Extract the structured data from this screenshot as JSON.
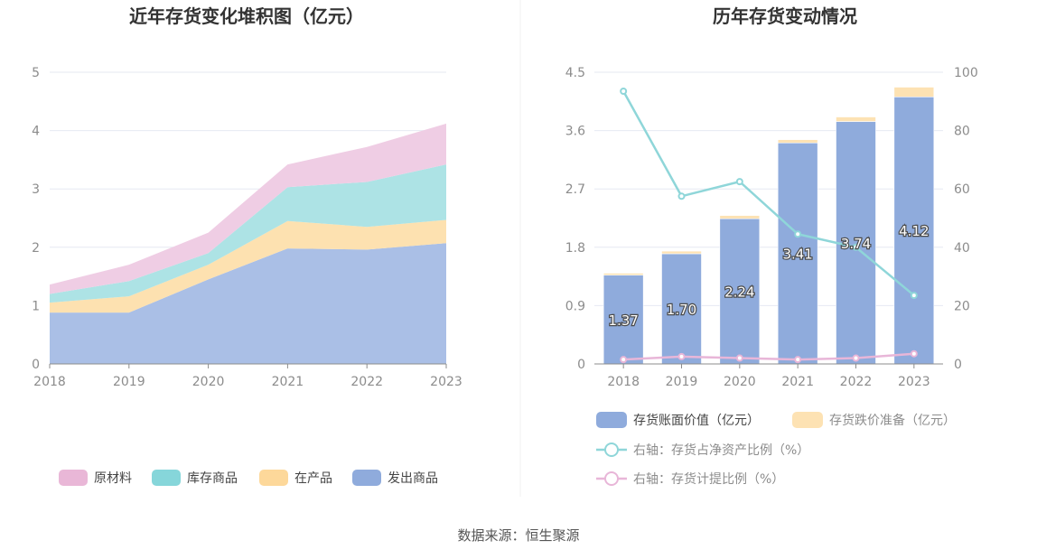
{
  "source": "数据来源：恒生聚源",
  "chart_data": [
    {
      "type": "area",
      "stacked": true,
      "title": "近年存货变化堆积图（亿元）",
      "x": [
        "2018",
        "2019",
        "2020",
        "2021",
        "2022",
        "2023"
      ],
      "ylim": [
        0,
        5
      ],
      "yticks": [
        "0",
        "1",
        "2",
        "3",
        "4",
        "5"
      ],
      "legend_position": "bottom",
      "series": [
        {
          "name": "发出商品",
          "color": "#aabfe6",
          "legend_color": "#8fabdc",
          "values": [
            0.88,
            0.88,
            1.45,
            1.98,
            1.96,
            2.07
          ]
        },
        {
          "name": "在产品",
          "color": "#fde1b0",
          "legend_color": "#fdd89a",
          "values": [
            0.17,
            0.28,
            0.25,
            0.47,
            0.39,
            0.4
          ]
        },
        {
          "name": "库存商品",
          "color": "#ade3e5",
          "legend_color": "#86d6da",
          "values": [
            0.15,
            0.26,
            0.2,
            0.58,
            0.77,
            0.95
          ]
        },
        {
          "name": "原材料",
          "color": "#efcde4",
          "legend_color": "#e9b7d7",
          "values": [
            0.16,
            0.28,
            0.35,
            0.39,
            0.6,
            0.7
          ]
        }
      ],
      "legend_order": [
        "原材料",
        "库存商品",
        "在产品",
        "发出商品"
      ]
    },
    {
      "type": "bar",
      "title": "历年存货变动情况",
      "categories": [
        "2018",
        "2019",
        "2020",
        "2021",
        "2022",
        "2023"
      ],
      "ylim_left": [
        0,
        4.5
      ],
      "yticks_left": [
        "0",
        "0.9",
        "1.8",
        "2.7",
        "3.6",
        "4.5"
      ],
      "ylim_right": [
        0,
        100
      ],
      "yticks_right": [
        "0",
        "20",
        "40",
        "60",
        "80",
        "100"
      ],
      "legend_position": "bottom",
      "bars_stacked": true,
      "series": [
        {
          "name": "存货账面价值（亿元）",
          "kind": "bar",
          "axis": "left",
          "color": "#8fabdc",
          "values": [
            1.37,
            1.7,
            2.24,
            3.41,
            3.74,
            4.12
          ],
          "labels": [
            "1.37",
            "1.70",
            "2.24",
            "3.41",
            "3.74",
            "4.12"
          ]
        },
        {
          "name": "存货跌价准备（亿元）",
          "kind": "bar",
          "axis": "left",
          "color": "#fde2b3",
          "values": [
            0.03,
            0.04,
            0.05,
            0.05,
            0.07,
            0.15
          ]
        },
        {
          "name": "右轴：存货占净资产比例（%）",
          "kind": "line",
          "axis": "right",
          "color": "#8fd6d9",
          "values": [
            93.5,
            57.5,
            62.5,
            44.5,
            40.0,
            23.5
          ]
        },
        {
          "name": "右轴：存货计提比例（%）",
          "kind": "line",
          "axis": "right",
          "color": "#e8b6d8",
          "values": [
            1.5,
            2.5,
            2.0,
            1.5,
            2.0,
            3.5
          ]
        }
      ]
    }
  ]
}
